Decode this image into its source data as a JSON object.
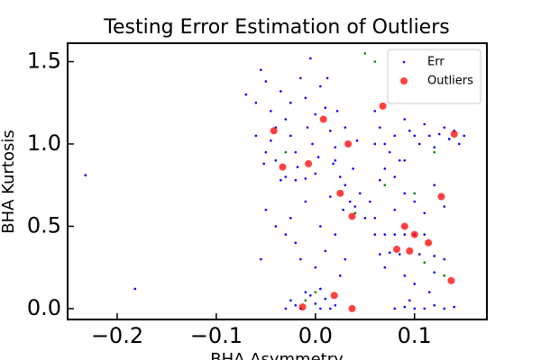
{
  "chart_data": {
    "type": "scatter",
    "title": "Testing Error Estimation of Outliers",
    "x_label": "BHA Asymmetry",
    "y_label": "BHA Kurtosis",
    "xlim": [
      -0.25,
      0.173
    ],
    "ylim": [
      -0.066,
      1.612
    ],
    "xticks": [
      {
        "value": -0.2,
        "label": "−0.2"
      },
      {
        "value": -0.1,
        "label": "−0.1"
      },
      {
        "value": 0,
        "label": "0.0"
      },
      0.1
    ],
    "yticks": [
      {
        "value": 0,
        "label": "0.0"
      },
      0.5,
      {
        "value": 1,
        "label": "1.0"
      },
      1.5
    ],
    "legend": "upper right",
    "series": [
      {
        "name": "Err",
        "color": "#0000ff",
        "size": 1.3,
        "x": [
          -0.07,
          -0.06,
          -0.055,
          -0.05,
          -0.045,
          -0.04,
          -0.035,
          -0.03,
          -0.025,
          -0.02,
          -0.015,
          -0.01,
          -0.005,
          0.0,
          0.005,
          0.01,
          0.015,
          0.02,
          -0.05,
          -0.04,
          -0.03,
          -0.02,
          -0.01,
          -0.035,
          -0.045,
          -0.025,
          -0.008,
          0.003,
          0.012,
          -0.06,
          -0.052,
          -0.018,
          0.0,
          0.018,
          -0.003,
          0.02,
          0.025,
          0.03,
          0.035,
          0.04,
          0.045,
          0.05,
          0.028,
          0.015,
          0.055,
          0.038,
          0.042,
          0.03,
          0.022,
          -0.05,
          -0.055,
          -0.04,
          -0.03,
          -0.02,
          -0.025,
          -0.01,
          0.005,
          0.01,
          0.0,
          -0.015,
          0.02,
          0.03,
          0.025,
          -0.025,
          -0.02,
          -0.015,
          -0.01,
          -0.005,
          0.0,
          0.005,
          0.01,
          0.015,
          -0.03,
          0.02,
          0.005,
          0.08,
          0.09,
          0.1,
          0.11,
          0.12,
          0.13,
          0.14,
          0.095,
          0.115,
          0.1,
          0.06,
          0.07,
          0.08,
          0.09,
          0.1,
          0.11,
          0.065,
          0.075,
          0.085,
          0.105,
          0.12,
          0.13,
          0.07,
          0.09,
          0.12,
          0.06,
          0.08,
          0.1,
          0.11,
          0.13,
          0.12,
          0.09,
          0.06,
          0.065,
          0.07,
          0.075,
          0.08,
          0.085,
          0.09,
          0.095,
          0.1,
          0.105,
          0.11,
          0.115,
          0.12,
          0.125,
          0.13,
          0.135,
          0.14,
          0.145,
          0.15,
          0.07,
          0.08,
          0.065,
          0.09,
          0.06,
          -0.232,
          -0.182
        ],
        "y": [
          1.3,
          1.25,
          1.45,
          1.38,
          1.2,
          1.1,
          1.32,
          1.15,
          1.05,
          0.95,
          1.4,
          1.28,
          1.52,
          1.18,
          1.35,
          1.22,
          1.08,
          0.98,
          0.95,
          0.9,
          0.8,
          0.78,
          0.79,
          0.78,
          1.02,
          1.25,
          1.1,
          0.92,
          1.4,
          1.05,
          0.88,
          0.86,
          0.82,
          0.88,
          1.0,
          0.9,
          0.8,
          0.75,
          0.65,
          0.62,
          0.7,
          0.55,
          0.6,
          0.68,
          0.65,
          0.85,
          1.02,
          1.1,
          1.2,
          0.6,
          0.3,
          0.5,
          0.45,
          0.4,
          0.55,
          0.65,
          0.5,
          0.35,
          0.25,
          0.3,
          0.45,
          0.3,
          0.2,
          0.05,
          0.02,
          0.0,
          0.1,
          0.08,
          0.03,
          0.12,
          0.06,
          0.0,
          0.0,
          0.02,
          0.0,
          0.0,
          0.01,
          0.0,
          0.0,
          0.02,
          0.0,
          0.01,
          0.05,
          0.1,
          0.15,
          0.45,
          0.45,
          0.45,
          0.45,
          0.45,
          0.45,
          0.33,
          0.34,
          0.33,
          0.33,
          0.32,
          0.3,
          0.25,
          0.2,
          0.22,
          0.55,
          0.6,
          0.65,
          0.58,
          0.62,
          0.75,
          0.7,
          1.2,
          1.1,
          1.0,
          0.95,
          1.05,
          0.9,
          1.15,
          1.08,
          1.05,
          1.0,
          1.12,
          1.05,
          0.98,
          1.06,
          1.1,
          1.03,
          1.08,
          1.0,
          1.05,
          0.85,
          0.8,
          0.78,
          0.9,
          1.0,
          0.81,
          0.12
        ]
      },
      {
        "color": "#008000",
        "size": 1.3,
        "x": [
          0.05,
          0.06,
          0.04,
          0.1,
          -0.01,
          0.0,
          0.13,
          0.12,
          0.07,
          -0.03,
          0.11
        ],
        "y": [
          1.55,
          1.5,
          0.58,
          0.7,
          0.05,
          0.1,
          0.2,
          0.95,
          0.75,
          0.95,
          0.28
        ]
      },
      {
        "name": "Outliers",
        "color": "#ff0000",
        "size": 4,
        "x": [
          -0.042,
          0.008,
          0.033,
          0.068,
          -0.033,
          -0.007,
          0.025,
          0.037,
          0.127,
          0.09,
          0.1,
          0.082,
          0.095,
          0.114,
          0.14,
          0.137,
          0.019,
          -0.013,
          0.037
        ],
        "y": [
          1.08,
          1.15,
          1.0,
          1.23,
          0.86,
          0.88,
          0.7,
          0.56,
          0.68,
          0.5,
          0.45,
          0.36,
          0.35,
          0.4,
          1.06,
          0.17,
          0.08,
          0.01,
          0.0
        ]
      }
    ]
  }
}
